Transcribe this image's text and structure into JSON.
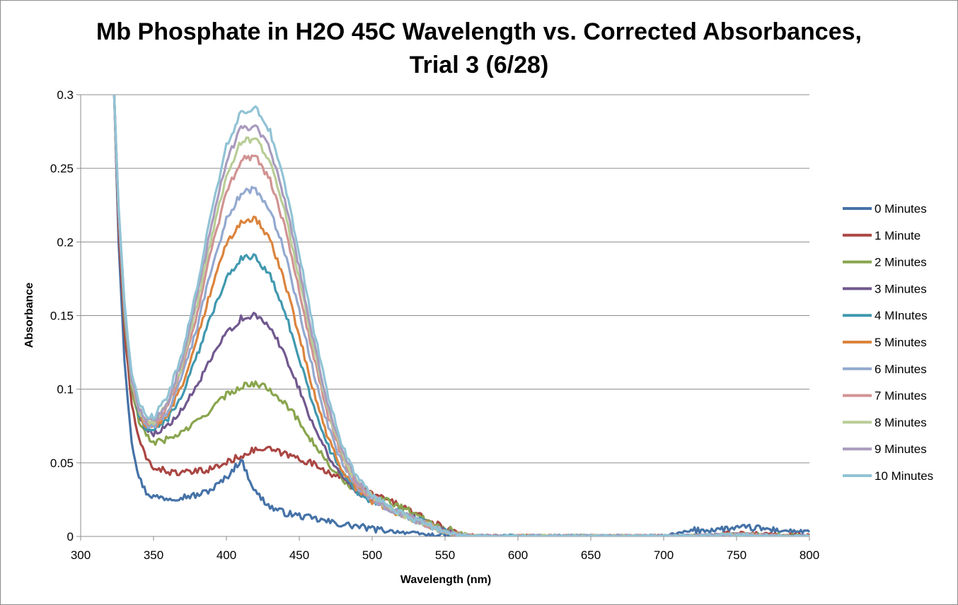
{
  "chart_data": {
    "type": "line",
    "title_line1": "Mb Phosphate in H2O 45C Wavelength vs. Corrected Absorbances,",
    "title_line2": "Trial 3 (6/28)",
    "xlabel": "Wavelength (nm)",
    "ylabel": "Absorbance",
    "xlim": [
      300,
      800
    ],
    "ylim": [
      0,
      0.3
    ],
    "x_ticks": [
      "300",
      "350",
      "400",
      "450",
      "500",
      "550",
      "600",
      "650",
      "700",
      "750",
      "800"
    ],
    "y_ticks": [
      "0",
      "0.05",
      "0.1",
      "0.15",
      "0.2",
      "0.25",
      "0.3"
    ],
    "grid": "horizontal",
    "legend_position": "right",
    "x": [
      323,
      326,
      330,
      335,
      340,
      345,
      350,
      360,
      370,
      380,
      390,
      400,
      410,
      420,
      430,
      440,
      450,
      460,
      470,
      480,
      490,
      500,
      510,
      520,
      530,
      540,
      550,
      560,
      570,
      580,
      600,
      650,
      700,
      720,
      740,
      760,
      780,
      800
    ],
    "series": [
      {
        "name": "0 Minutes",
        "color": "#4572a7",
        "values": [
          0.3,
          0.2,
          0.12,
          0.065,
          0.04,
          0.03,
          0.027,
          0.026,
          0.027,
          0.028,
          0.032,
          0.04,
          0.052,
          0.03,
          0.02,
          0.016,
          0.014,
          0.012,
          0.01,
          0.008,
          0.007,
          0.005,
          0.004,
          0.003,
          0.002,
          0.001,
          0.001,
          0.0005,
          0,
          0,
          0,
          0,
          0,
          0.004,
          0.005,
          0.006,
          0.004,
          0.003
        ]
      },
      {
        "name": "1 Minute",
        "color": "#aa4643",
        "values": [
          0.3,
          0.21,
          0.14,
          0.09,
          0.065,
          0.053,
          0.047,
          0.044,
          0.043,
          0.044,
          0.046,
          0.05,
          0.055,
          0.059,
          0.059,
          0.056,
          0.053,
          0.049,
          0.044,
          0.038,
          0.033,
          0.029,
          0.025,
          0.021,
          0.015,
          0.01,
          0.006,
          0.002,
          0,
          0,
          0,
          0,
          0,
          0,
          0.002,
          0.002,
          0.001,
          0.001
        ]
      },
      {
        "name": "2 Minutes",
        "color": "#89a54e",
        "values": [
          0.3,
          0.22,
          0.15,
          0.1,
          0.078,
          0.068,
          0.064,
          0.066,
          0.071,
          0.078,
          0.087,
          0.096,
          0.102,
          0.104,
          0.1,
          0.091,
          0.078,
          0.063,
          0.049,
          0.038,
          0.031,
          0.027,
          0.024,
          0.02,
          0.015,
          0.01,
          0.006,
          0.002,
          0,
          0,
          0,
          0,
          0,
          0,
          0.001,
          0.001,
          0.001,
          0
        ]
      },
      {
        "name": "3 Minutes",
        "color": "#71588f",
        "values": [
          0.3,
          0.22,
          0.155,
          0.105,
          0.083,
          0.073,
          0.07,
          0.075,
          0.086,
          0.103,
          0.121,
          0.138,
          0.148,
          0.15,
          0.142,
          0.124,
          0.1,
          0.075,
          0.055,
          0.04,
          0.03,
          0.025,
          0.021,
          0.017,
          0.012,
          0.008,
          0.004,
          0.001,
          0,
          0,
          0,
          0,
          0,
          0,
          0.001,
          0.001,
          0,
          0
        ]
      },
      {
        "name": "4 MInutes",
        "color": "#4198af",
        "values": [
          0.3,
          0.22,
          0.155,
          0.105,
          0.083,
          0.074,
          0.072,
          0.08,
          0.097,
          0.123,
          0.151,
          0.176,
          0.189,
          0.19,
          0.177,
          0.153,
          0.121,
          0.088,
          0.061,
          0.042,
          0.03,
          0.024,
          0.02,
          0.016,
          0.012,
          0.007,
          0.004,
          0.001,
          0,
          0,
          0,
          0,
          0,
          0,
          0.001,
          0.001,
          0,
          0
        ]
      },
      {
        "name": "5 Minutes",
        "color": "#db843d",
        "values": [
          0.3,
          0.22,
          0.155,
          0.105,
          0.084,
          0.075,
          0.074,
          0.083,
          0.104,
          0.135,
          0.169,
          0.199,
          0.214,
          0.216,
          0.201,
          0.173,
          0.136,
          0.098,
          0.066,
          0.044,
          0.031,
          0.024,
          0.019,
          0.015,
          0.011,
          0.007,
          0.003,
          0.001,
          0,
          0,
          0,
          0,
          0,
          0,
          0.001,
          0.001,
          0,
          0
        ]
      },
      {
        "name": "6 Minutes",
        "color": "#93a9cf",
        "values": [
          0.3,
          0.22,
          0.155,
          0.105,
          0.085,
          0.076,
          0.075,
          0.085,
          0.109,
          0.143,
          0.182,
          0.215,
          0.233,
          0.236,
          0.222,
          0.193,
          0.153,
          0.111,
          0.074,
          0.048,
          0.033,
          0.025,
          0.019,
          0.015,
          0.011,
          0.007,
          0.003,
          0.001,
          0,
          0,
          0,
          0,
          0,
          0,
          0.001,
          0.001,
          0,
          0
        ]
      },
      {
        "name": "7 Minutes",
        "color": "#d19392",
        "values": [
          0.3,
          0.22,
          0.155,
          0.105,
          0.085,
          0.077,
          0.076,
          0.088,
          0.114,
          0.152,
          0.196,
          0.233,
          0.256,
          0.258,
          0.242,
          0.21,
          0.167,
          0.121,
          0.081,
          0.052,
          0.035,
          0.026,
          0.02,
          0.015,
          0.011,
          0.007,
          0.003,
          0.001,
          0,
          0,
          0,
          0,
          0,
          0,
          0.001,
          0.001,
          0,
          0
        ]
      },
      {
        "name": "8 Minutes",
        "color": "#b9cd96",
        "values": [
          0.3,
          0.22,
          0.155,
          0.105,
          0.086,
          0.078,
          0.077,
          0.09,
          0.118,
          0.158,
          0.205,
          0.245,
          0.268,
          0.27,
          0.254,
          0.221,
          0.176,
          0.127,
          0.085,
          0.055,
          0.036,
          0.027,
          0.02,
          0.015,
          0.011,
          0.007,
          0.003,
          0.001,
          0,
          0,
          0,
          0,
          0,
          0,
          0.001,
          0.001,
          0,
          0
        ]
      },
      {
        "name": "9 Minutes",
        "color": "#a99bbd",
        "values": [
          0.3,
          0.22,
          0.155,
          0.105,
          0.087,
          0.079,
          0.078,
          0.092,
          0.121,
          0.164,
          0.213,
          0.255,
          0.277,
          0.279,
          0.263,
          0.229,
          0.182,
          0.132,
          0.088,
          0.057,
          0.037,
          0.027,
          0.02,
          0.015,
          0.011,
          0.007,
          0.003,
          0.001,
          0,
          0,
          0,
          0,
          0,
          0,
          0.001,
          0.001,
          0,
          0
        ]
      },
      {
        "name": "10 Minutes",
        "color": "#91c3d5",
        "values": [
          0.3,
          0.225,
          0.16,
          0.11,
          0.09,
          0.082,
          0.081,
          0.096,
          0.126,
          0.17,
          0.222,
          0.265,
          0.288,
          0.292,
          0.275,
          0.24,
          0.192,
          0.14,
          0.094,
          0.06,
          0.039,
          0.028,
          0.021,
          0.016,
          0.011,
          0.007,
          0.003,
          0.001,
          0,
          0,
          0,
          0,
          0,
          0,
          0.001,
          0.001,
          0,
          0
        ]
      }
    ]
  }
}
